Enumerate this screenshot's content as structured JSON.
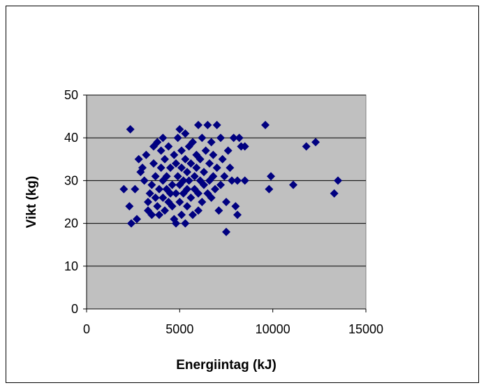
{
  "chart_data": {
    "type": "scatter",
    "title": "",
    "xlabel": "Energiintag (kJ)",
    "ylabel": "Vikt (kg)",
    "xlim": [
      0,
      15000
    ],
    "ylim": [
      0,
      50
    ],
    "x_ticks": [
      0,
      5000,
      10000,
      15000
    ],
    "y_ticks": [
      0,
      10,
      20,
      30,
      40,
      50
    ],
    "grid": "horizontal",
    "legend": "none",
    "colors": {
      "plot_background": "#c0c0c0",
      "marker": "#000080",
      "gridline": "#000000"
    },
    "marker": "diamond",
    "series": [
      {
        "points": [
          [
            2000,
            28
          ],
          [
            2300,
            24
          ],
          [
            2350,
            42
          ],
          [
            2400,
            20
          ],
          [
            2700,
            21
          ],
          [
            2600,
            28
          ],
          [
            2800,
            35
          ],
          [
            2900,
            32
          ],
          [
            3000,
            33
          ],
          [
            3100,
            30
          ],
          [
            3200,
            36
          ],
          [
            3300,
            25
          ],
          [
            3300,
            23
          ],
          [
            3400,
            27
          ],
          [
            3500,
            22
          ],
          [
            3500,
            29
          ],
          [
            3600,
            38
          ],
          [
            3600,
            34
          ],
          [
            3700,
            31
          ],
          [
            3700,
            26
          ],
          [
            3800,
            39
          ],
          [
            3800,
            24
          ],
          [
            3900,
            28
          ],
          [
            3900,
            22
          ],
          [
            4000,
            33
          ],
          [
            4000,
            37
          ],
          [
            4100,
            40
          ],
          [
            4100,
            30
          ],
          [
            4100,
            26
          ],
          [
            4200,
            35
          ],
          [
            4200,
            23
          ],
          [
            4300,
            28
          ],
          [
            4300,
            31
          ],
          [
            4400,
            25
          ],
          [
            4400,
            38
          ],
          [
            4500,
            27
          ],
          [
            4500,
            33
          ],
          [
            4600,
            29
          ],
          [
            4600,
            24
          ],
          [
            4700,
            36
          ],
          [
            4700,
            21
          ],
          [
            4800,
            20
          ],
          [
            4800,
            34
          ],
          [
            4800,
            27
          ],
          [
            4900,
            40
          ],
          [
            4900,
            31
          ],
          [
            5000,
            42
          ],
          [
            5000,
            29
          ],
          [
            5000,
            25
          ],
          [
            5100,
            37
          ],
          [
            5100,
            33
          ],
          [
            5100,
            22
          ],
          [
            5200,
            30
          ],
          [
            5200,
            27
          ],
          [
            5300,
            20
          ],
          [
            5300,
            35
          ],
          [
            5300,
            41
          ],
          [
            5400,
            32
          ],
          [
            5400,
            28
          ],
          [
            5400,
            24
          ],
          [
            5500,
            38
          ],
          [
            5500,
            30
          ],
          [
            5600,
            26
          ],
          [
            5600,
            34
          ],
          [
            5700,
            39
          ],
          [
            5700,
            22
          ],
          [
            5800,
            31
          ],
          [
            5800,
            28
          ],
          [
            5900,
            36
          ],
          [
            5900,
            33
          ],
          [
            6000,
            43
          ],
          [
            6000,
            27
          ],
          [
            6000,
            23
          ],
          [
            6100,
            35
          ],
          [
            6100,
            30
          ],
          [
            6200,
            40
          ],
          [
            6200,
            25
          ],
          [
            6300,
            32
          ],
          [
            6300,
            29
          ],
          [
            6400,
            37
          ],
          [
            6500,
            43
          ],
          [
            6500,
            27
          ],
          [
            6600,
            34
          ],
          [
            6600,
            30
          ],
          [
            6700,
            39
          ],
          [
            6700,
            26
          ],
          [
            6800,
            36
          ],
          [
            6800,
            31
          ],
          [
            6900,
            28
          ],
          [
            7000,
            43
          ],
          [
            7000,
            33
          ],
          [
            7100,
            23
          ],
          [
            7200,
            40
          ],
          [
            7200,
            29
          ],
          [
            7300,
            35
          ],
          [
            7400,
            31
          ],
          [
            7500,
            25
          ],
          [
            7500,
            18
          ],
          [
            7600,
            37
          ],
          [
            7700,
            33
          ],
          [
            7800,
            30
          ],
          [
            7900,
            40
          ],
          [
            8000,
            24
          ],
          [
            8100,
            22
          ],
          [
            8100,
            30
          ],
          [
            8200,
            40
          ],
          [
            8300,
            38
          ],
          [
            8500,
            38
          ],
          [
            8500,
            30
          ],
          [
            9600,
            43
          ],
          [
            9800,
            28
          ],
          [
            9900,
            31
          ],
          [
            11100,
            29
          ],
          [
            11800,
            38
          ],
          [
            12300,
            39
          ],
          [
            13300,
            27
          ],
          [
            13500,
            30
          ]
        ]
      }
    ]
  }
}
